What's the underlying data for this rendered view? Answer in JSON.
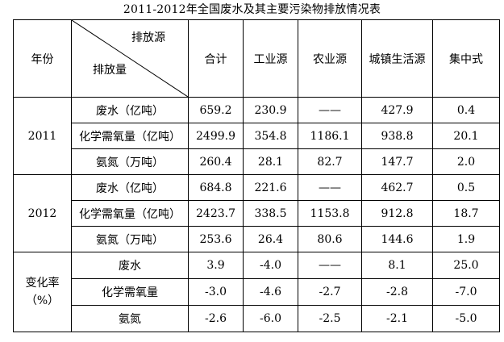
{
  "title": "2011-2012年全国废水及其主要污染物排放情况表",
  "header": {
    "year_label": "年份",
    "diagonal_top": "排放源",
    "diagonal_bottom": "排放量",
    "columns": [
      "合计",
      "工业源",
      "农业源",
      "城镇生活源",
      "集中式"
    ]
  },
  "groups": [
    {
      "label": "2011",
      "label_line2": "",
      "rows": [
        {
          "item": "废水（亿吨）",
          "values": [
            "659.2",
            "230.9",
            "——",
            "427.9",
            "0.4"
          ]
        },
        {
          "item": "化学需氧量（亿吨）",
          "values": [
            "2499.9",
            "354.8",
            "1186.1",
            "938.8",
            "20.1"
          ]
        },
        {
          "item": "氨氮（万吨）",
          "values": [
            "260.4",
            "28.1",
            "82.7",
            "147.7",
            "2.0"
          ]
        }
      ]
    },
    {
      "label": "2012",
      "label_line2": "",
      "rows": [
        {
          "item": "废水（亿吨）",
          "values": [
            "684.8",
            "221.6",
            "——",
            "462.7",
            "0.5"
          ]
        },
        {
          "item": "化学需氧量（亿吨）",
          "values": [
            "2423.7",
            "338.5",
            "1153.8",
            "912.8",
            "18.7"
          ]
        },
        {
          "item": "氨氮（万吨）",
          "values": [
            "253.6",
            "26.4",
            "80.6",
            "144.6",
            "1.9"
          ]
        }
      ]
    },
    {
      "label": "变化率",
      "label_line2": "（%）",
      "rows": [
        {
          "item": "废水",
          "values": [
            "3.9",
            "-4.0",
            "——",
            "8.1",
            "25.0"
          ]
        },
        {
          "item": "化学需氧量",
          "values": [
            "-3.0",
            "-4.6",
            "-2.7",
            "-2.8",
            "-7.0"
          ]
        },
        {
          "item": "氨氮",
          "values": [
            "-2.6",
            "-6.0",
            "-2.5",
            "-2.1",
            "-5.0"
          ]
        }
      ]
    }
  ]
}
